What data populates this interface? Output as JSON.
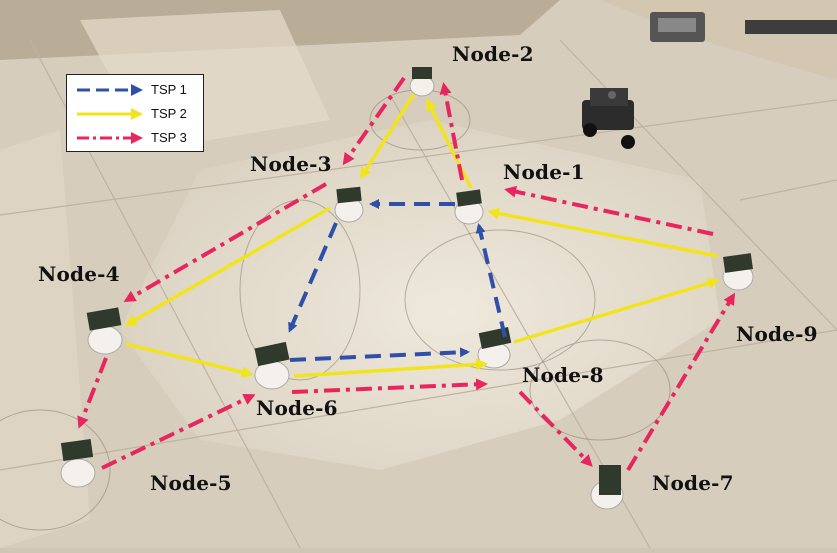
{
  "colors": {
    "tsp1": "#2f4fa8",
    "tsp2": "#f2e41c",
    "tsp3": "#e8265e"
  },
  "legend": [
    {
      "label": "TSP 1",
      "style": "dashed",
      "color": "#2f4fa8"
    },
    {
      "label": "TSP 2",
      "style": "solid",
      "color": "#f2e41c"
    },
    {
      "label": "TSP 3",
      "style": "dash-dot",
      "color": "#e8265e"
    }
  ],
  "nodes": {
    "n1": "Node-1",
    "n2": "Node-2",
    "n3": "Node-3",
    "n4": "Node-4",
    "n5": "Node-5",
    "n6": "Node-6",
    "n7": "Node-7",
    "n8": "Node-8",
    "n9": "Node-9"
  }
}
